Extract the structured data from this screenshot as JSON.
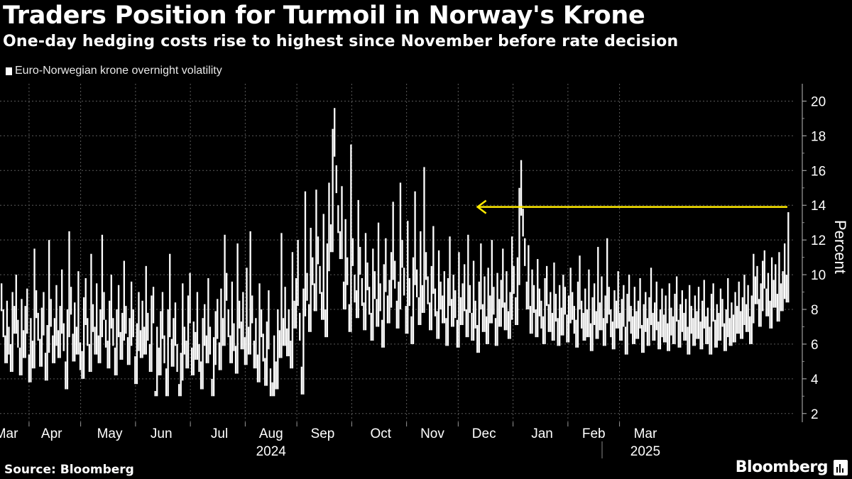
{
  "header": {
    "title": "Traders Position for Turmoil in Norway's Krone",
    "subtitle": "One-day hedging costs rise to highest since November before rate decision"
  },
  "footer": {
    "source": "Source: Bloomberg",
    "brand": "Bloomberg"
  },
  "colors": {
    "background": "#000000",
    "series": "#ffffff",
    "grid": "#5a5a5a",
    "annotation": "#ffea00"
  },
  "chart_data": {
    "type": "bar",
    "title": "Traders Position for Turmoil in Norway's Krone",
    "subtitle": "One-day hedging costs rise to highest since November before rate decision",
    "legend": [
      "Euro-Norwegian krone overnight volatility"
    ],
    "legend_position": "top-left",
    "xlabel": "",
    "ylabel": "Percent",
    "ylim": [
      1.5,
      21
    ],
    "yticks": [
      2,
      4,
      6,
      8,
      10,
      12,
      14,
      16,
      18,
      20
    ],
    "x_range": [
      2024.0,
      2025.23
    ],
    "month_labels": [
      "Mar",
      "Apr",
      "May",
      "Jun",
      "Jul",
      "Aug",
      "Sep",
      "Oct",
      "Nov",
      "Dec",
      "Jan",
      "Feb",
      "Mar"
    ],
    "month_positions": [
      2024.01,
      2024.08,
      2024.17,
      2024.25,
      2024.34,
      2024.42,
      2024.5,
      2024.59,
      2024.67,
      2024.75,
      2024.84,
      2024.92,
      2025.0
    ],
    "year_labels": [
      "2024",
      "2025"
    ],
    "year_positions": [
      2024.42,
      2025.0
    ],
    "grid": true,
    "annotation": {
      "type": "arrow",
      "y": 13.9,
      "from_x": 2025.22,
      "to_x": 2024.74
    },
    "series": [
      {
        "name": "Euro-Norwegian krone overnight volatility",
        "start": "2024-03-01",
        "step_days": 1,
        "values": [
          9.5,
          8.0,
          6.5,
          8.5,
          7.0,
          6.0,
          9.0,
          8.2,
          10.0,
          7.4,
          5.8,
          8.6,
          6.8,
          8.2,
          9.2,
          5.4,
          7.5,
          6.2,
          11.5,
          9.1,
          7.8,
          6.3,
          8.1,
          9.0,
          5.5,
          7.1,
          12.0,
          8.6,
          6.5,
          7.5,
          9.4,
          6.8,
          8.2,
          10.3,
          7.2,
          5.0,
          8.0,
          12.5,
          9.3,
          6.6,
          8.4,
          7.0,
          10.2,
          6.1,
          5.6,
          8.7,
          9.8,
          7.5,
          6.0,
          11.2,
          8.3,
          7.0,
          9.5,
          6.5,
          8.0,
          12.3,
          9.0,
          7.4,
          6.2,
          8.5,
          10.0,
          7.5,
          5.8,
          8.0,
          9.4,
          6.7,
          7.8,
          10.8,
          8.2,
          6.4,
          7.5,
          9.6,
          8.0,
          5.3,
          7.2,
          9.0,
          6.8,
          8.5,
          7.0,
          10.5,
          7.8,
          6.0,
          8.8,
          9.3,
          3.3,
          7.0,
          5.8,
          7.9,
          9.0,
          6.5,
          4.6,
          8.0,
          11.2,
          6.3,
          7.5,
          8.4,
          6.0,
          3.7,
          5.5,
          9.5,
          7.0,
          6.2,
          8.8,
          10.1,
          5.8,
          7.3,
          6.7,
          9.0,
          6.0,
          5.0,
          7.5,
          8.3,
          6.5,
          9.8,
          7.0,
          4.0,
          6.4,
          7.9,
          8.6,
          6.1,
          9.2,
          7.5,
          12.3,
          10.1,
          8.0,
          6.5,
          9.6,
          7.2,
          5.9,
          11.8,
          8.5,
          7.3,
          9.0,
          6.4,
          10.4,
          7.0,
          12.5,
          8.8,
          6.2,
          7.5,
          5.4,
          9.5,
          8.0,
          6.6,
          5.2,
          7.3,
          9.1,
          4.6,
          3.8,
          6.5,
          5.0,
          8.0,
          6.8,
          12.4,
          7.5,
          9.3,
          6.9,
          8.0,
          6.2,
          11.3,
          8.5,
          9.8,
          12.0,
          7.8,
          4.7,
          9.2,
          14.8,
          10.1,
          8.3,
          12.7,
          11.0,
          9.5,
          14.9,
          12.2,
          10.5,
          9.0,
          13.5,
          8.0,
          11.8,
          15.3,
          12.9,
          18.4,
          19.6,
          16.3,
          14.0,
          12.5,
          15.1,
          9.6,
          13.2,
          11.0,
          8.3,
          17.5,
          12.1,
          10.0,
          9.1,
          14.3,
          11.6,
          9.8,
          8.4,
          12.4,
          10.7,
          9.3,
          7.8,
          11.5,
          10.2,
          8.6,
          13.0,
          9.5,
          7.4,
          10.6,
          12.1,
          8.8,
          9.7,
          11.3,
          14.2,
          10.8,
          8.5,
          9.6,
          15.3,
          12.0,
          10.4,
          8.2,
          13.1,
          9.8,
          7.6,
          11.0,
          14.8,
          10.3,
          8.7,
          12.5,
          9.4,
          16.2,
          11.3,
          9.9,
          8.4,
          10.5,
          12.8,
          9.2,
          7.9,
          11.4,
          9.6,
          8.8,
          10.2,
          7.5,
          9.8,
          12.2,
          8.6,
          10.0,
          9.1,
          7.4,
          11.3,
          8.7,
          9.5,
          10.6,
          8.0,
          12.3,
          9.4,
          7.8,
          10.8,
          8.5,
          7.1,
          9.6,
          11.8,
          8.3,
          9.9,
          7.6,
          10.4,
          8.8,
          12.0,
          9.3,
          7.5,
          10.1,
          8.6,
          9.7,
          11.5,
          8.4,
          10.2,
          7.9,
          9.0,
          12.2,
          10.5,
          8.7,
          11.0,
          15.0,
          16.6,
          13.8,
          12.1,
          9.6,
          11.7,
          8.2,
          10.3,
          9.4,
          8.0,
          10.9,
          9.2,
          8.5,
          7.6,
          9.8,
          10.5,
          8.3,
          9.0,
          7.8,
          10.7,
          8.9,
          7.5,
          9.4,
          8.1,
          10.0,
          9.3,
          7.7,
          8.8,
          10.4,
          9.0,
          8.2,
          7.4,
          9.6,
          11.1,
          8.5,
          7.8,
          9.2,
          8.0,
          10.3,
          7.2,
          8.7,
          9.5,
          7.9,
          11.6,
          8.4,
          9.9,
          7.5,
          8.8,
          12.1,
          9.3,
          8.0,
          7.3,
          9.1,
          8.5,
          10.2,
          7.8,
          8.6,
          9.4,
          7.0,
          8.9,
          10.0,
          8.2,
          7.6,
          9.3,
          7.9,
          8.5,
          9.8,
          7.1,
          8.3,
          9.0,
          7.5,
          8.7,
          10.4,
          7.8,
          8.4,
          9.6,
          7.3,
          8.0,
          9.2,
          7.7,
          8.8,
          7.2,
          9.5,
          8.1,
          7.6,
          8.9,
          9.9,
          7.4,
          8.3,
          9.1,
          7.8,
          8.6,
          7.0,
          9.4,
          8.2,
          7.5,
          8.8,
          7.9,
          9.3,
          7.3,
          8.5,
          9.7,
          7.6,
          8.1,
          7.0,
          8.9,
          9.5,
          7.4,
          8.3,
          7.8,
          9.2,
          8.6,
          7.2,
          8.0,
          9.8,
          7.5,
          8.4,
          7.7,
          9.0,
          8.2,
          9.6,
          7.9,
          8.7,
          10.0,
          8.3,
          9.4,
          7.6,
          8.8,
          11.2,
          9.9,
          10.5,
          8.6,
          9.5,
          10.8,
          11.4,
          9.2,
          10.1,
          8.5,
          11.0,
          9.7,
          10.6,
          8.9,
          11.3,
          9.5,
          10.2,
          11.8,
          10.0,
          13.6
        ]
      }
    ]
  }
}
